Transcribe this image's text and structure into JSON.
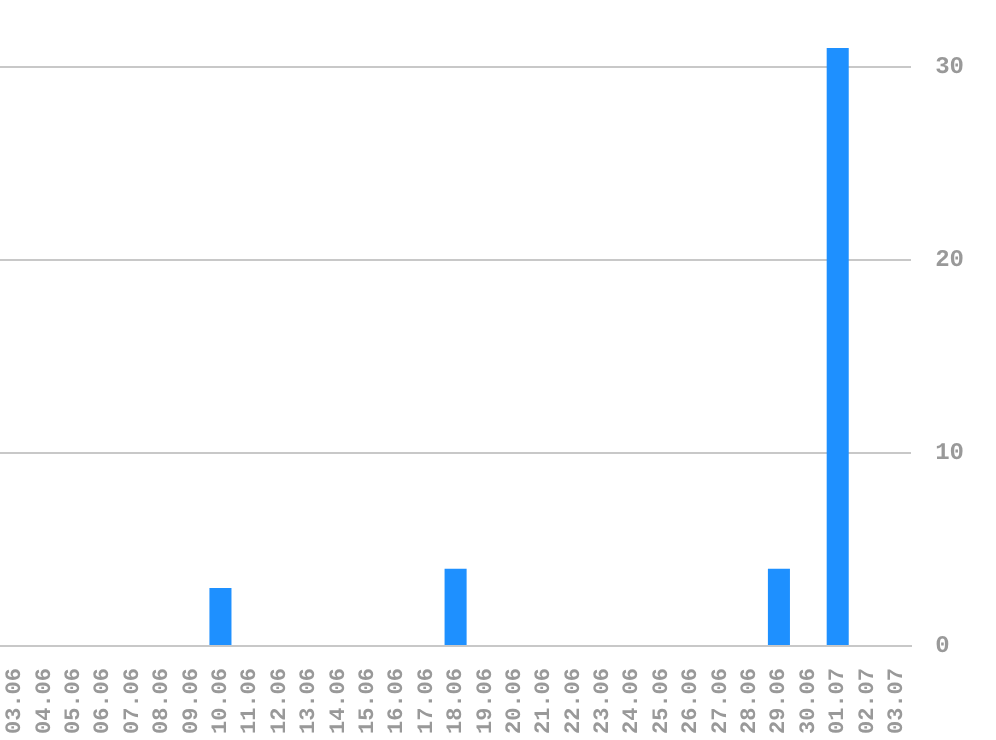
{
  "chart_data": {
    "type": "bar",
    "categories": [
      "03.06",
      "04.06",
      "05.06",
      "06.06",
      "07.06",
      "08.06",
      "09.06",
      "10.06",
      "11.06",
      "12.06",
      "13.06",
      "14.06",
      "15.06",
      "16.06",
      "17.06",
      "18.06",
      "19.06",
      "20.06",
      "21.06",
      "22.06",
      "23.06",
      "24.06",
      "25.06",
      "26.06",
      "27.06",
      "28.06",
      "29.06",
      "30.06",
      "01.07",
      "02.07",
      "03.07"
    ],
    "values": [
      0,
      0,
      0,
      0,
      0,
      0,
      0,
      3,
      0,
      0,
      0,
      0,
      0,
      0,
      0,
      4,
      0,
      0,
      0,
      0,
      0,
      0,
      0,
      0,
      0,
      0,
      4,
      0,
      31,
      0,
      0
    ],
    "color": "#1e90ff",
    "ylim": [
      0,
      31
    ],
    "yticks": [
      0,
      10,
      20,
      30
    ],
    "grid": "y",
    "legend": false
  }
}
